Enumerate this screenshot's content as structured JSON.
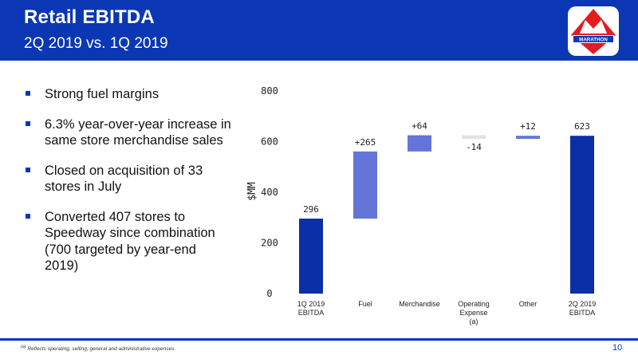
{
  "header": {
    "title": "Retail EBITDA",
    "subtitle": "2Q 2019 vs. 1Q 2019",
    "logo_text": "MARATHON"
  },
  "bullets": [
    "Strong fuel margins",
    "6.3% year-over-year increase in same store merchandise sales",
    "Closed on acquisition of 33 stores in July",
    "Converted 407 stores to Speedway since combination (700 targeted by year-end 2019)"
  ],
  "footer": {
    "footnote_marker": "(a)",
    "footnote": "Reflects operating, selling, general and administrative expenses.",
    "page_number": "10"
  },
  "colors": {
    "brand_blue": "#0b37b5",
    "total_bar": "#0b2fa6",
    "increase_bar": "#6475d9",
    "decrease_bar": "#dfe3e8",
    "header_bg": "#0b37b5"
  },
  "chart_data": {
    "type": "waterfall",
    "title": "",
    "ylabel": "$MM",
    "ylim": [
      0,
      800
    ],
    "yticks": [
      0,
      200,
      400,
      600,
      800
    ],
    "grid": false,
    "categories": [
      [
        "1Q 2019",
        "EBITDA"
      ],
      [
        "Fuel"
      ],
      [
        "Merchandise"
      ],
      [
        "Operating",
        "Expense",
        "(a)"
      ],
      [
        "Other"
      ],
      [
        "2Q 2019",
        "EBITDA"
      ]
    ],
    "bars": [
      {
        "kind": "total",
        "value": 296,
        "label": "296"
      },
      {
        "kind": "increase",
        "value": 265,
        "label": "+265"
      },
      {
        "kind": "increase",
        "value": 64,
        "label": "+64"
      },
      {
        "kind": "decrease",
        "value": -14,
        "label": "-14"
      },
      {
        "kind": "increase",
        "value": 12,
        "label": "+12"
      },
      {
        "kind": "total",
        "value": 623,
        "label": "623"
      }
    ]
  }
}
